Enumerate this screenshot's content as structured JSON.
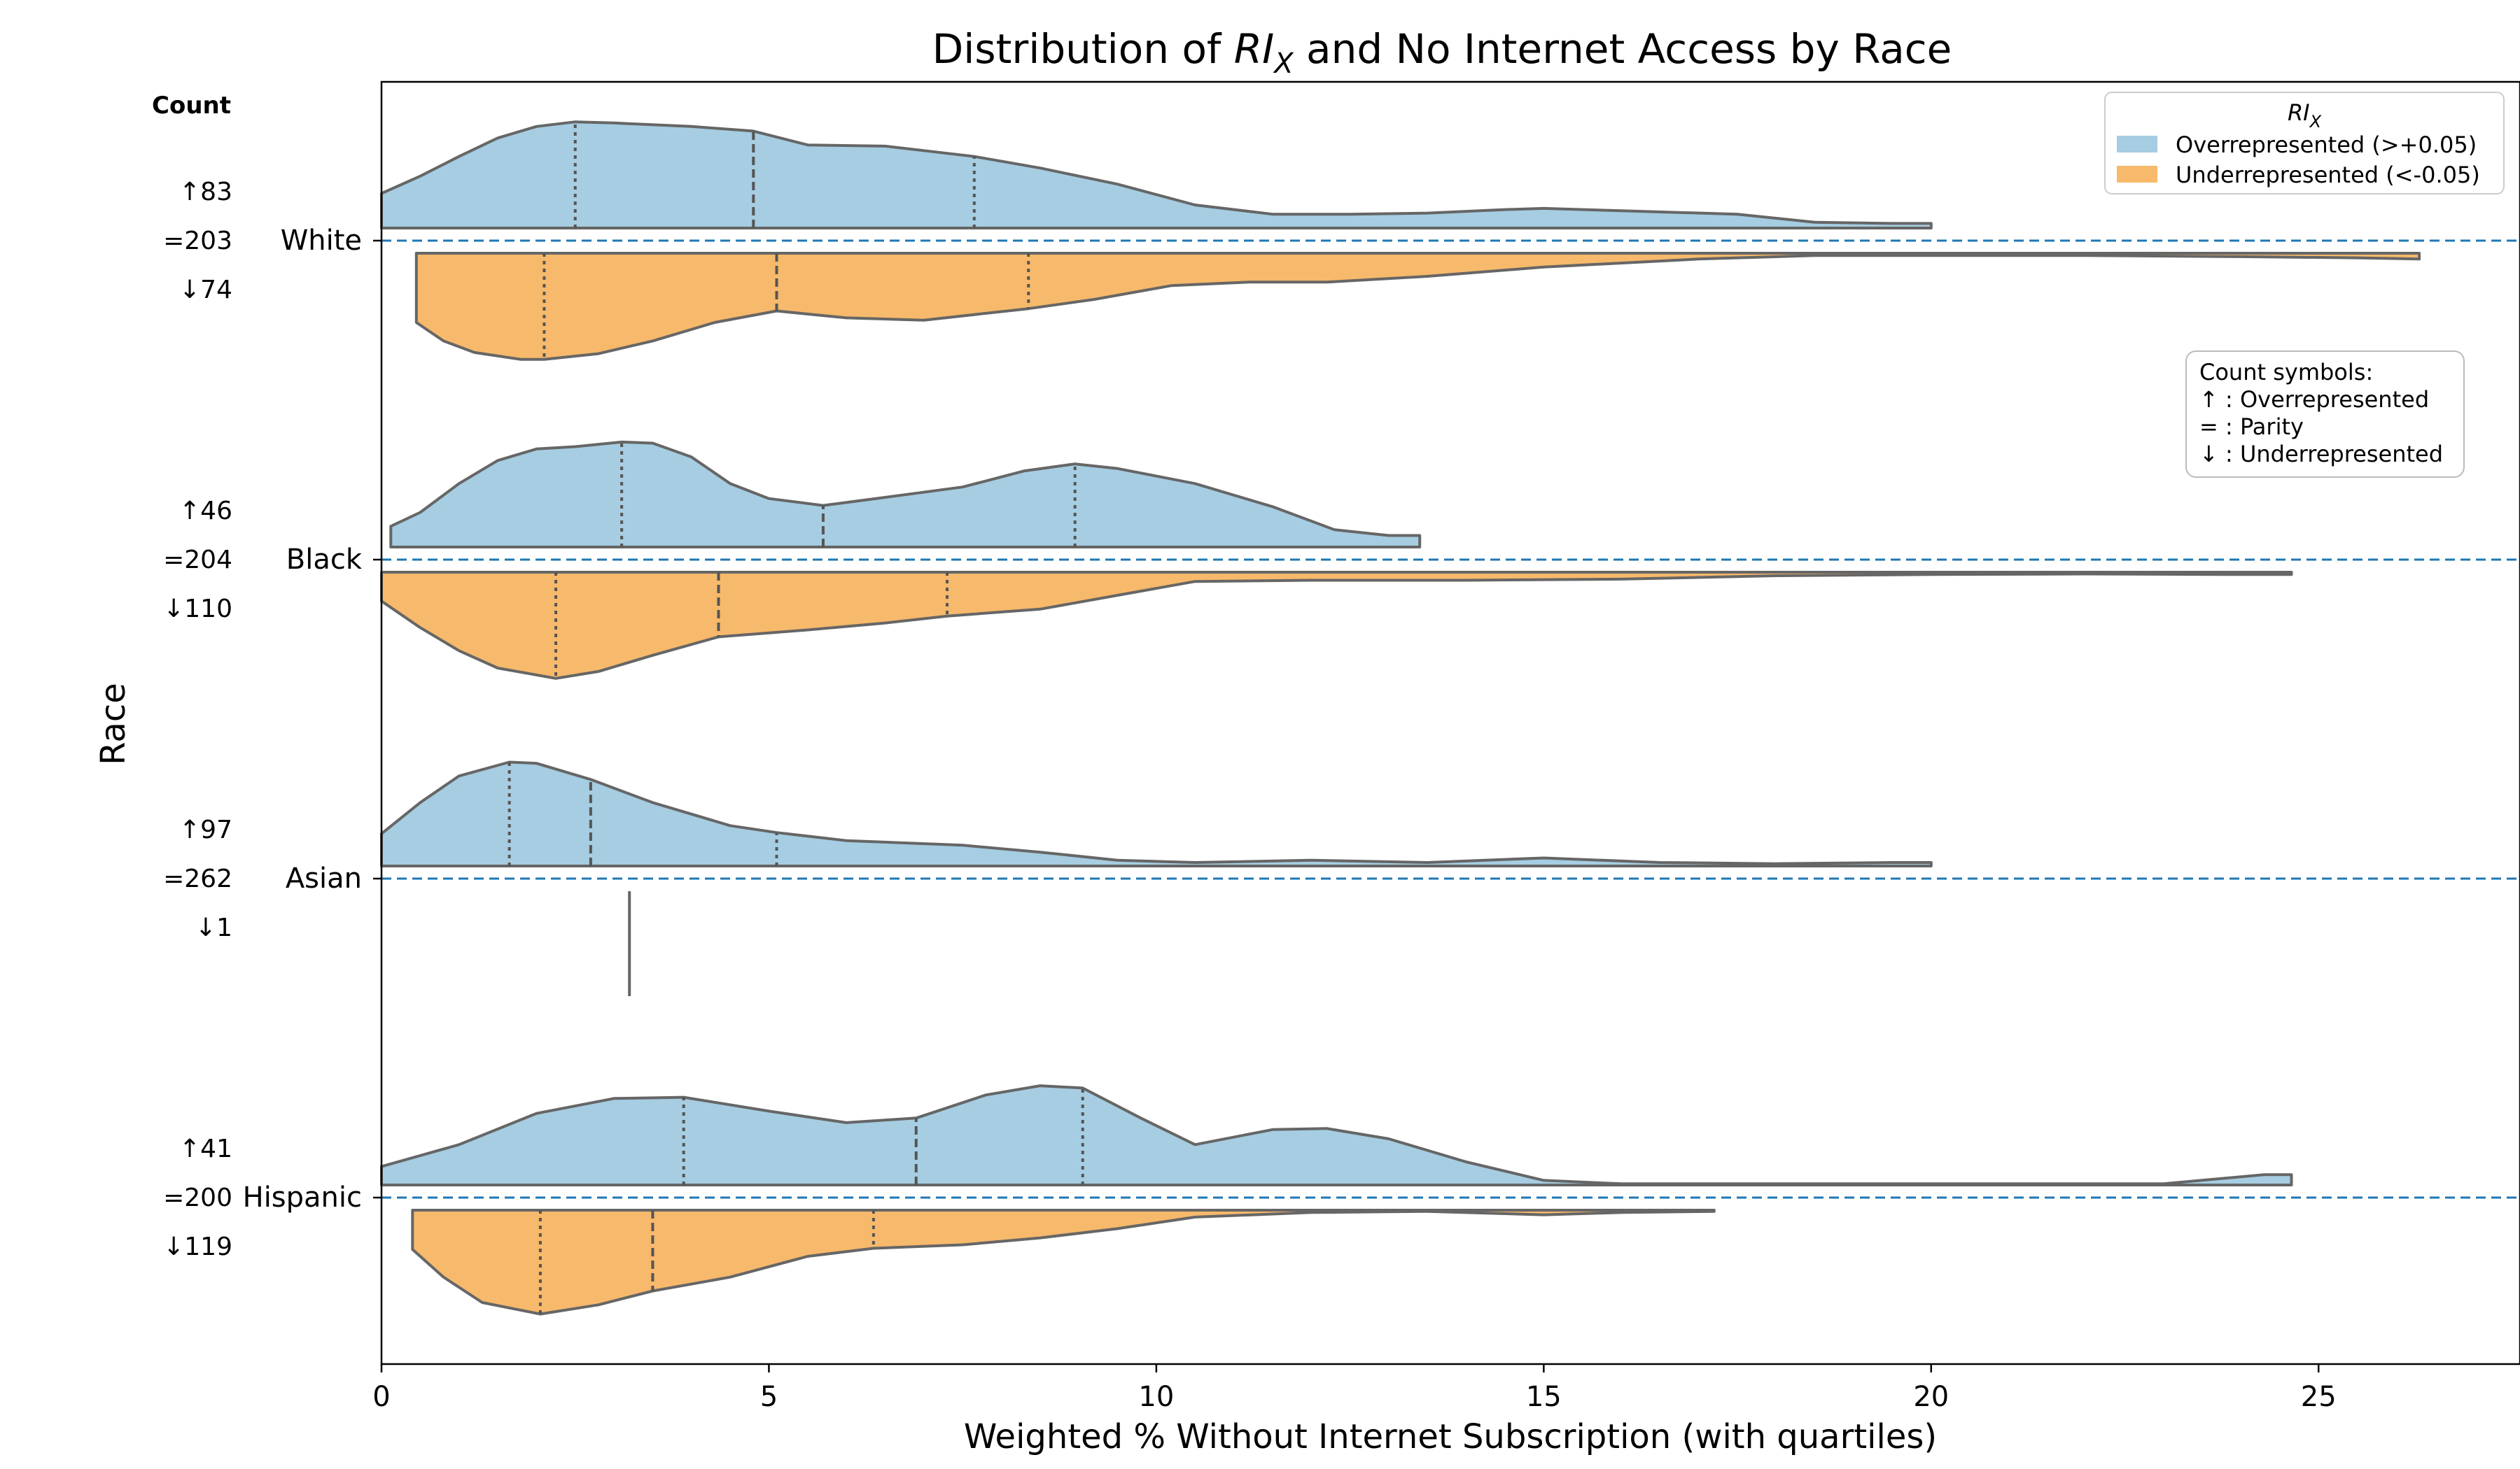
{
  "chart_data": {
    "type": "violin",
    "orientation": "horizontal",
    "title_prefix": "Distribution of ",
    "title_math_main": "RI",
    "title_math_sub": "X",
    "title_suffix": " and No Internet Access by Race",
    "xlabel": "Weighted % Without Internet Subscription (with quartiles)",
    "ylabel": "Race",
    "xlim": [
      0,
      27.6
    ],
    "xticks": [
      0,
      5,
      10,
      15,
      20,
      25
    ],
    "count_header": "Count",
    "legend": {
      "title_main": "RI",
      "title_sub": "X",
      "placement": "top-right",
      "entries": [
        {
          "label": "Overrepresented (>+0.05)",
          "color": "#a6cde2"
        },
        {
          "label": "Underrepresented (<-0.05)",
          "color": "#f7b96b"
        }
      ]
    },
    "symbols_box": {
      "placement": "right",
      "lines": [
        "Count symbols:",
        "↑ : Overrepresented",
        "= : Parity",
        "↓ : Underrepresented"
      ]
    },
    "colors": {
      "over": "#a6cde2",
      "under": "#f7b96b",
      "outline": "#666666",
      "parity_line": "#1f77b4"
    },
    "groups": [
      {
        "race": "White",
        "count_over": "↑83",
        "count_parity": "=203",
        "count_under": "↓74",
        "over": {
          "range": [
            0,
            20
          ],
          "quartiles": [
            2.5,
            4.8,
            7.65
          ],
          "density": [
            [
              0,
              0.3
            ],
            [
              0.5,
              0.45
            ],
            [
              1,
              0.62
            ],
            [
              1.5,
              0.78
            ],
            [
              2,
              0.88
            ],
            [
              2.5,
              0.92
            ],
            [
              3,
              0.91
            ],
            [
              4,
              0.88
            ],
            [
              4.8,
              0.84
            ],
            [
              5.5,
              0.72
            ],
            [
              6.5,
              0.71
            ],
            [
              7.65,
              0.62
            ],
            [
              8.5,
              0.52
            ],
            [
              9.5,
              0.38
            ],
            [
              10.5,
              0.2
            ],
            [
              11.5,
              0.12
            ],
            [
              12.5,
              0.12
            ],
            [
              13.5,
              0.13
            ],
            [
              14.5,
              0.16
            ],
            [
              15,
              0.17
            ],
            [
              16,
              0.15
            ],
            [
              17.5,
              0.12
            ],
            [
              18.5,
              0.05
            ],
            [
              19.5,
              0.04
            ],
            [
              20,
              0.04
            ]
          ]
        },
        "under": {
          "range": [
            0.45,
            26.3
          ],
          "quartiles": [
            2.1,
            5.1,
            8.35
          ],
          "density": [
            [
              0.45,
              0.6
            ],
            [
              0.8,
              0.76
            ],
            [
              1.2,
              0.86
            ],
            [
              1.8,
              0.92
            ],
            [
              2.1,
              0.92
            ],
            [
              2.8,
              0.87
            ],
            [
              3.5,
              0.76
            ],
            [
              4.3,
              0.6
            ],
            [
              5.1,
              0.5
            ],
            [
              6,
              0.56
            ],
            [
              7,
              0.58
            ],
            [
              8.35,
              0.48
            ],
            [
              9.2,
              0.4
            ],
            [
              10.2,
              0.28
            ],
            [
              11.2,
              0.25
            ],
            [
              12.2,
              0.25
            ],
            [
              13.5,
              0.2
            ],
            [
              15,
              0.12
            ],
            [
              17,
              0.05
            ],
            [
              18.5,
              0.02
            ],
            [
              20,
              0.02
            ],
            [
              22,
              0.02
            ],
            [
              24,
              0.03
            ],
            [
              25.5,
              0.04
            ],
            [
              26.3,
              0.05
            ]
          ]
        }
      },
      {
        "race": "Black",
        "count_over": "↑46",
        "count_parity": "=204",
        "count_under": "↓110",
        "over": {
          "range": [
            0.12,
            13.4
          ],
          "quartiles": [
            3.1,
            5.7,
            8.95
          ],
          "density": [
            [
              0.12,
              0.18
            ],
            [
              0.5,
              0.3
            ],
            [
              1,
              0.55
            ],
            [
              1.5,
              0.75
            ],
            [
              2,
              0.85
            ],
            [
              2.5,
              0.87
            ],
            [
              3.1,
              0.91
            ],
            [
              3.5,
              0.9
            ],
            [
              4,
              0.78
            ],
            [
              4.5,
              0.55
            ],
            [
              5,
              0.42
            ],
            [
              5.7,
              0.36
            ],
            [
              6.5,
              0.43
            ],
            [
              7.5,
              0.52
            ],
            [
              8.3,
              0.66
            ],
            [
              8.95,
              0.72
            ],
            [
              9.5,
              0.68
            ],
            [
              10.5,
              0.55
            ],
            [
              11.5,
              0.35
            ],
            [
              12.3,
              0.15
            ],
            [
              13,
              0.1
            ],
            [
              13.4,
              0.1
            ]
          ]
        },
        "under": {
          "range": [
            0,
            24.65
          ],
          "quartiles": [
            2.25,
            4.35,
            7.3
          ],
          "density": [
            [
              0,
              0.25
            ],
            [
              0.5,
              0.48
            ],
            [
              1,
              0.68
            ],
            [
              1.5,
              0.83
            ],
            [
              2.25,
              0.92
            ],
            [
              2.8,
              0.86
            ],
            [
              3.5,
              0.72
            ],
            [
              4.35,
              0.56
            ],
            [
              5.5,
              0.5
            ],
            [
              6.5,
              0.44
            ],
            [
              7.3,
              0.38
            ],
            [
              8.5,
              0.32
            ],
            [
              9.5,
              0.2
            ],
            [
              10.5,
              0.08
            ],
            [
              12,
              0.07
            ],
            [
              14,
              0.07
            ],
            [
              16,
              0.06
            ],
            [
              18,
              0.03
            ],
            [
              20,
              0.02
            ],
            [
              22,
              0.015
            ],
            [
              24,
              0.02
            ],
            [
              24.65,
              0.02
            ]
          ]
        }
      },
      {
        "race": "Asian",
        "count_over": "↑97",
        "count_parity": "=262",
        "count_under": "↓1",
        "over": {
          "range": [
            0,
            20
          ],
          "quartiles": [
            1.65,
            2.7,
            5.1
          ],
          "density": [
            [
              0,
              0.28
            ],
            [
              0.5,
              0.55
            ],
            [
              1,
              0.78
            ],
            [
              1.65,
              0.9
            ],
            [
              2,
              0.89
            ],
            [
              2.7,
              0.75
            ],
            [
              3.5,
              0.55
            ],
            [
              4.5,
              0.35
            ],
            [
              5.1,
              0.29
            ],
            [
              6,
              0.22
            ],
            [
              7.5,
              0.18
            ],
            [
              8.5,
              0.12
            ],
            [
              9.5,
              0.05
            ],
            [
              10.5,
              0.03
            ],
            [
              12,
              0.05
            ],
            [
              13.5,
              0.03
            ],
            [
              15,
              0.07
            ],
            [
              16.5,
              0.03
            ],
            [
              18,
              0.02
            ],
            [
              19.5,
              0.03
            ],
            [
              20,
              0.03
            ]
          ]
        },
        "under": {
          "range": [
            3.2,
            3.2
          ],
          "quartiles": [],
          "density": []
        }
      },
      {
        "race": "Hispanic",
        "count_over": "↑41",
        "count_parity": "=200",
        "count_under": "↓119",
        "over": {
          "range": [
            0,
            24.65
          ],
          "quartiles": [
            3.9,
            6.9,
            9.05
          ],
          "density": [
            [
              0,
              0.16
            ],
            [
              1,
              0.35
            ],
            [
              2,
              0.62
            ],
            [
              3,
              0.75
            ],
            [
              3.9,
              0.76
            ],
            [
              5,
              0.64
            ],
            [
              6,
              0.54
            ],
            [
              6.9,
              0.58
            ],
            [
              7.8,
              0.78
            ],
            [
              8.5,
              0.86
            ],
            [
              9.05,
              0.84
            ],
            [
              9.8,
              0.58
            ],
            [
              10.5,
              0.35
            ],
            [
              11.5,
              0.48
            ],
            [
              12.2,
              0.49
            ],
            [
              13,
              0.4
            ],
            [
              14,
              0.2
            ],
            [
              15,
              0.04
            ],
            [
              16,
              0.01
            ],
            [
              18,
              0.01
            ],
            [
              20,
              0.01
            ],
            [
              23,
              0.01
            ],
            [
              24.3,
              0.09
            ],
            [
              24.65,
              0.09
            ]
          ]
        },
        "under": {
          "range": [
            0.4,
            17.2
          ],
          "quartiles": [
            2.05,
            3.5,
            6.35
          ],
          "density": [
            [
              0.4,
              0.34
            ],
            [
              0.8,
              0.58
            ],
            [
              1.3,
              0.8
            ],
            [
              2.05,
              0.9
            ],
            [
              2.8,
              0.82
            ],
            [
              3.5,
              0.7
            ],
            [
              4.5,
              0.58
            ],
            [
              5.5,
              0.4
            ],
            [
              6.35,
              0.33
            ],
            [
              7.5,
              0.3
            ],
            [
              8.5,
              0.24
            ],
            [
              9.5,
              0.16
            ],
            [
              10.5,
              0.06
            ],
            [
              12,
              0.02
            ],
            [
              13.5,
              0.01
            ],
            [
              15,
              0.04
            ],
            [
              16,
              0.02
            ],
            [
              17.2,
              0.01
            ]
          ]
        }
      }
    ]
  }
}
